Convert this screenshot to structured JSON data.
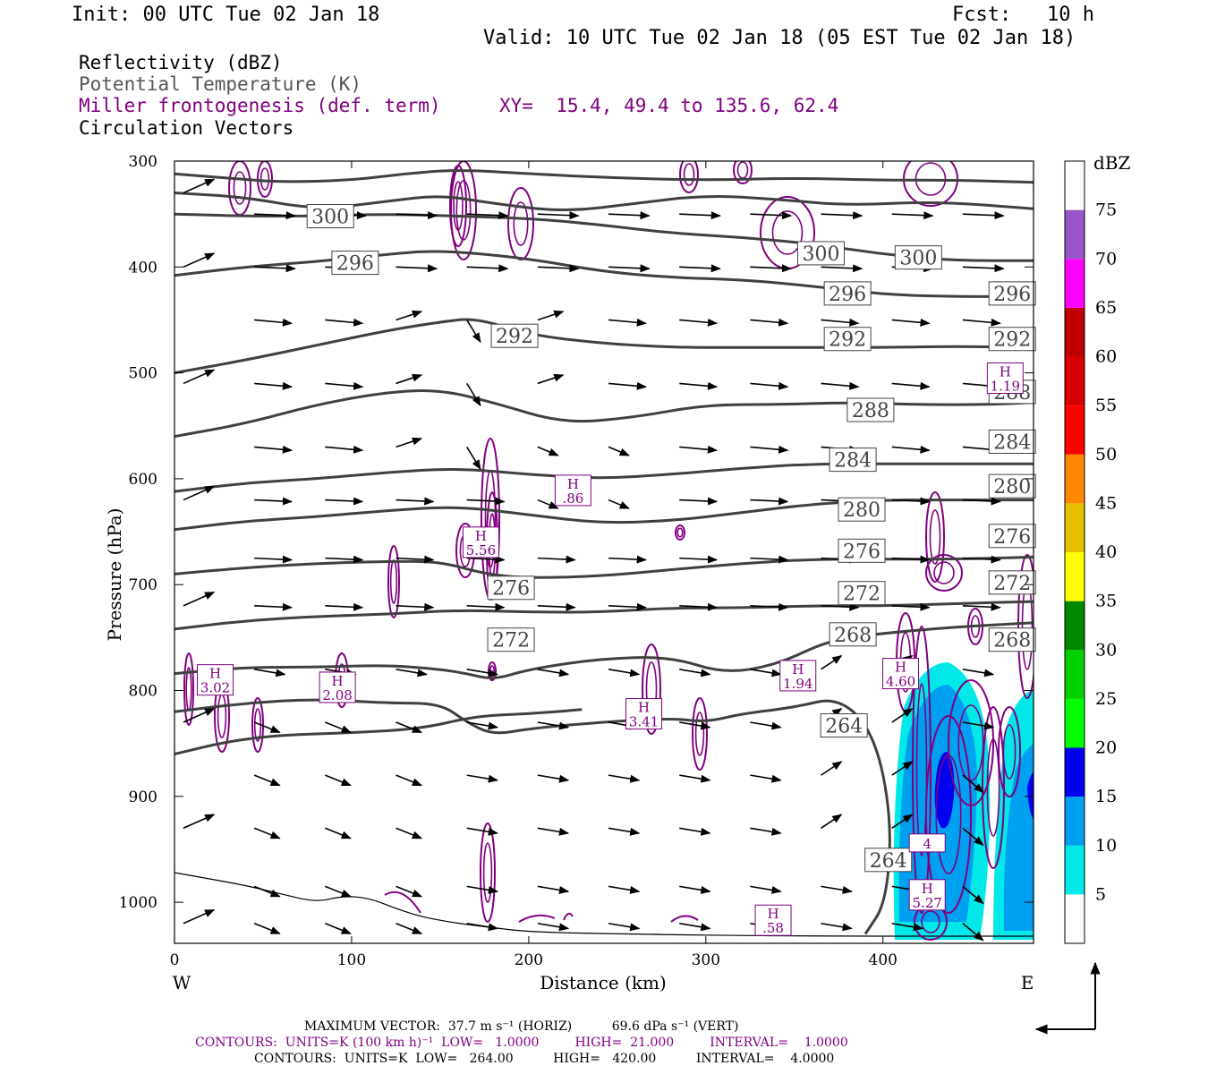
{
  "header": {
    "init": "Init: 00 UTC Tue 02 Jan 18",
    "fcst": "Fcst:   10 h",
    "valid": "Valid: 10 UTC Tue 02 Jan 18 (05 EST Tue 02 Jan 18)"
  },
  "legend": {
    "line1": "Reflectivity (dBZ)",
    "line2": "Potential Temperature (K)",
    "line3": "Miller frontogenesis (def. term)",
    "xy": "XY=  15.4, 49.4 to 135.6, 62.4",
    "line4": "Circulation Vectors"
  },
  "colors": {
    "theta": "#404040",
    "fronto": "#800080",
    "vector": "#000000"
  },
  "chart_data": {
    "type": "contour-cross-section",
    "xlabel": "Distance (km)",
    "ylabel": "Pressure (hPa)",
    "xlim": [
      0,
      485
    ],
    "ylim": [
      1030,
      300
    ],
    "x_ticks": [
      0,
      100,
      200,
      300,
      400
    ],
    "y_ticks": [
      300,
      400,
      500,
      600,
      700,
      800,
      900,
      1000
    ],
    "west_label": "W",
    "east_label": "E",
    "colorbar": {
      "unit": "dBZ",
      "levels": [
        5,
        10,
        15,
        20,
        25,
        30,
        35,
        40,
        45,
        50,
        55,
        60,
        65,
        70,
        75
      ],
      "colors": [
        "#ffffff",
        "#00e8e8",
        "#00a0f0",
        "#0000f0",
        "#00ff00",
        "#00d000",
        "#008800",
        "#ffff00",
        "#e8c000",
        "#ff8800",
        "#ff0000",
        "#d80000",
        "#c00000",
        "#ff00ff",
        "#9955cc",
        "#ffffff"
      ]
    },
    "theta_contours": [
      {
        "value": 300,
        "label": "300",
        "points": [
          [
            0,
            312
          ],
          [
            30,
            316
          ],
          [
            60,
            320
          ],
          [
            100,
            318
          ],
          [
            130,
            312
          ],
          [
            160,
            308
          ],
          [
            200,
            312
          ],
          [
            250,
            316
          ],
          [
            300,
            318
          ],
          [
            350,
            316
          ],
          [
            400,
            318
          ],
          [
            440,
            318
          ],
          [
            485,
            320
          ]
        ]
      },
      {
        "value": 300,
        "label": "300",
        "points": [
          [
            0,
            330
          ],
          [
            40,
            334
          ],
          [
            80,
            346
          ],
          [
            120,
            338
          ],
          [
            150,
            332
          ],
          [
            180,
            340
          ],
          [
            220,
            348
          ],
          [
            260,
            340
          ],
          [
            300,
            332
          ],
          [
            340,
            336
          ],
          [
            380,
            342
          ],
          [
            430,
            338
          ],
          [
            485,
            345
          ]
        ]
      },
      {
        "value": 300,
        "label": "300",
        "points": [
          [
            0,
            350
          ],
          [
            40,
            352
          ],
          [
            80,
            352
          ],
          [
            120,
            350
          ],
          [
            160,
            352
          ],
          [
            200,
            354
          ],
          [
            240,
            360
          ],
          [
            280,
            368
          ],
          [
            320,
            372
          ],
          [
            360,
            378
          ],
          [
            400,
            388
          ],
          [
            440,
            394
          ],
          [
            485,
            394
          ]
        ]
      },
      {
        "value": 296,
        "label": "296",
        "points": [
          [
            0,
            408
          ],
          [
            40,
            400
          ],
          [
            80,
            395
          ],
          [
            120,
            388
          ],
          [
            150,
            384
          ],
          [
            200,
            392
          ],
          [
            240,
            404
          ],
          [
            280,
            410
          ],
          [
            320,
            412
          ],
          [
            360,
            418
          ],
          [
            400,
            426
          ],
          [
            440,
            428
          ],
          [
            485,
            428
          ]
        ]
      },
      {
        "value": 292,
        "label": "292",
        "points": [
          [
            0,
            500
          ],
          [
            40,
            488
          ],
          [
            80,
            474
          ],
          [
            120,
            460
          ],
          [
            150,
            452
          ],
          [
            170,
            448
          ],
          [
            200,
            464
          ],
          [
            240,
            472
          ],
          [
            280,
            476
          ],
          [
            320,
            476
          ],
          [
            360,
            476
          ],
          [
            400,
            476
          ],
          [
            440,
            475
          ],
          [
            485,
            476
          ]
        ]
      },
      {
        "value": 288,
        "label": "288",
        "points": [
          [
            0,
            560
          ],
          [
            40,
            548
          ],
          [
            80,
            530
          ],
          [
            120,
            518
          ],
          [
            150,
            516
          ],
          [
            180,
            528
          ],
          [
            220,
            548
          ],
          [
            260,
            542
          ],
          [
            300,
            530
          ],
          [
            340,
            530
          ],
          [
            380,
            528
          ],
          [
            420,
            530
          ],
          [
            460,
            530
          ],
          [
            485,
            528
          ]
        ]
      },
      {
        "value": 284,
        "label": "284",
        "points": [
          [
            0,
            612
          ],
          [
            40,
            604
          ],
          [
            80,
            600
          ],
          [
            120,
            594
          ],
          [
            160,
            590
          ],
          [
            200,
            596
          ],
          [
            240,
            600
          ],
          [
            280,
            596
          ],
          [
            320,
            590
          ],
          [
            360,
            586
          ],
          [
            400,
            586
          ],
          [
            440,
            586
          ],
          [
            485,
            586
          ]
        ]
      },
      {
        "value": 280,
        "label": "280",
        "points": [
          [
            0,
            648
          ],
          [
            40,
            640
          ],
          [
            80,
            636
          ],
          [
            120,
            630
          ],
          [
            160,
            626
          ],
          [
            200,
            634
          ],
          [
            240,
            642
          ],
          [
            280,
            640
          ],
          [
            320,
            632
          ],
          [
            360,
            624
          ],
          [
            400,
            620
          ],
          [
            440,
            620
          ],
          [
            485,
            620
          ]
        ]
      },
      {
        "value": 276,
        "label": "276",
        "points": [
          [
            0,
            690
          ],
          [
            40,
            684
          ],
          [
            80,
            680
          ],
          [
            120,
            678
          ],
          [
            150,
            678
          ],
          [
            175,
            690
          ],
          [
            200,
            694
          ],
          [
            240,
            692
          ],
          [
            280,
            686
          ],
          [
            320,
            680
          ],
          [
            360,
            676
          ],
          [
            400,
            676
          ],
          [
            440,
            676
          ],
          [
            485,
            674
          ]
        ]
      },
      {
        "value": 272,
        "label": "272",
        "points": [
          [
            0,
            742
          ],
          [
            40,
            734
          ],
          [
            80,
            730
          ],
          [
            120,
            728
          ],
          [
            160,
            724
          ],
          [
            200,
            726
          ],
          [
            240,
            726
          ],
          [
            280,
            722
          ],
          [
            320,
            722
          ],
          [
            360,
            720
          ],
          [
            400,
            720
          ],
          [
            440,
            718
          ],
          [
            485,
            716
          ]
        ]
      },
      {
        "value": 268,
        "label": "268",
        "points": [
          [
            0,
            784
          ],
          [
            40,
            778
          ],
          [
            80,
            778
          ],
          [
            120,
            776
          ],
          [
            150,
            780
          ],
          [
            165,
            784
          ],
          [
            180,
            790
          ],
          [
            200,
            780
          ],
          [
            240,
            770
          ],
          [
            280,
            768
          ],
          [
            310,
            784
          ],
          [
            340,
            776
          ],
          [
            370,
            752
          ],
          [
            400,
            746
          ],
          [
            440,
            740
          ],
          [
            485,
            736
          ]
        ]
      },
      {
        "value": 264,
        "label": "264",
        "points": [
          [
            0,
            820
          ],
          [
            40,
            812
          ],
          [
            80,
            808
          ],
          [
            120,
            812
          ],
          [
            150,
            812
          ],
          [
            165,
            830
          ],
          [
            180,
            842
          ],
          [
            200,
            836
          ],
          [
            240,
            830
          ],
          [
            280,
            826
          ],
          [
            300,
            830
          ],
          [
            320,
            822
          ],
          [
            350,
            816
          ],
          [
            375,
            806
          ],
          [
            395,
            840
          ],
          [
            405,
            920
          ],
          [
            402,
            1000
          ],
          [
            390,
            1030
          ]
        ]
      },
      {
        "value": 264,
        "label": "264",
        "points": [
          [
            0,
            860
          ],
          [
            30,
            848
          ],
          [
            60,
            842
          ],
          [
            100,
            840
          ],
          [
            140,
            836
          ],
          [
            170,
            824
          ],
          [
            200,
            822
          ],
          [
            230,
            818
          ]
        ]
      }
    ],
    "theta_labels": [
      {
        "text": "300",
        "x": 88,
        "p": 352
      },
      {
        "text": "296",
        "x": 102,
        "p": 396
      },
      {
        "text": "292",
        "x": 192,
        "p": 465
      },
      {
        "text": "288",
        "x": 393,
        "p": 535
      },
      {
        "text": "284",
        "x": 383,
        "p": 582
      },
      {
        "text": "280",
        "x": 388,
        "p": 629
      },
      {
        "text": "276",
        "x": 388,
        "p": 668
      },
      {
        "text": "272",
        "x": 388,
        "p": 708
      },
      {
        "text": "268",
        "x": 383,
        "p": 747
      },
      {
        "text": "264",
        "x": 378,
        "p": 833
      },
      {
        "text": "264",
        "x": 403,
        "p": 960
      },
      {
        "text": "276",
        "x": 190,
        "p": 703
      },
      {
        "text": "272",
        "x": 190,
        "p": 752
      },
      {
        "text": "300",
        "x": 365,
        "p": 387
      },
      {
        "text": "300",
        "x": 420,
        "p": 391
      },
      {
        "text": "296",
        "x": 380,
        "p": 425
      },
      {
        "text": "296",
        "x": 473,
        "p": 425
      },
      {
        "text": "292",
        "x": 380,
        "p": 468
      },
      {
        "text": "292",
        "x": 473,
        "p": 468
      },
      {
        "text": "288",
        "x": 473,
        "p": 518
      },
      {
        "text": "284",
        "x": 473,
        "p": 565
      },
      {
        "text": "280",
        "x": 473,
        "p": 607
      },
      {
        "text": "276",
        "x": 473,
        "p": 654
      },
      {
        "text": "272",
        "x": 473,
        "p": 698
      },
      {
        "text": "268",
        "x": 473,
        "p": 752
      }
    ],
    "fronto_maxima": [
      {
        "label": "H",
        "value": "3.02",
        "x": 23,
        "p": 790
      },
      {
        "label": "H",
        "value": "2.08",
        "x": 92,
        "p": 797
      },
      {
        "label": "H",
        "value": "5.56",
        "x": 173,
        "p": 660
      },
      {
        "label": "H",
        "value": ".86",
        "x": 225,
        "p": 611
      },
      {
        "label": "H",
        "value": "3.41",
        "x": 265,
        "p": 822
      },
      {
        "label": "H",
        "value": "1.94",
        "x": 352,
        "p": 786
      },
      {
        "label": "H",
        "value": "4.60",
        "x": 410,
        "p": 784
      },
      {
        "label": "H",
        "value": "5.27",
        "x": 425,
        "p": 993
      },
      {
        "label": "H",
        "value": ".58",
        "x": 338,
        "p": 1017
      },
      {
        "label": "H",
        "value": "1.19",
        "x": 469,
        "p": 505
      },
      {
        "label": "",
        "value": "4",
        "x": 425,
        "p": 944
      }
    ]
  },
  "footer": {
    "max_vector": "MAXIMUM VECTOR:  37.7 m s⁻¹ (HORIZ)          69.6 dPa s⁻¹ (VERT)",
    "contours_fronto": "CONTOURS:  UNITS=K (100 km h)⁻¹  LOW=   1.0000         HIGH=  21.000         INTERVAL=    1.0000",
    "contours_theta": "CONTOURS:  UNITS=K  LOW=   264.00          HIGH=   420.00          INTERVAL=    4.0000"
  }
}
